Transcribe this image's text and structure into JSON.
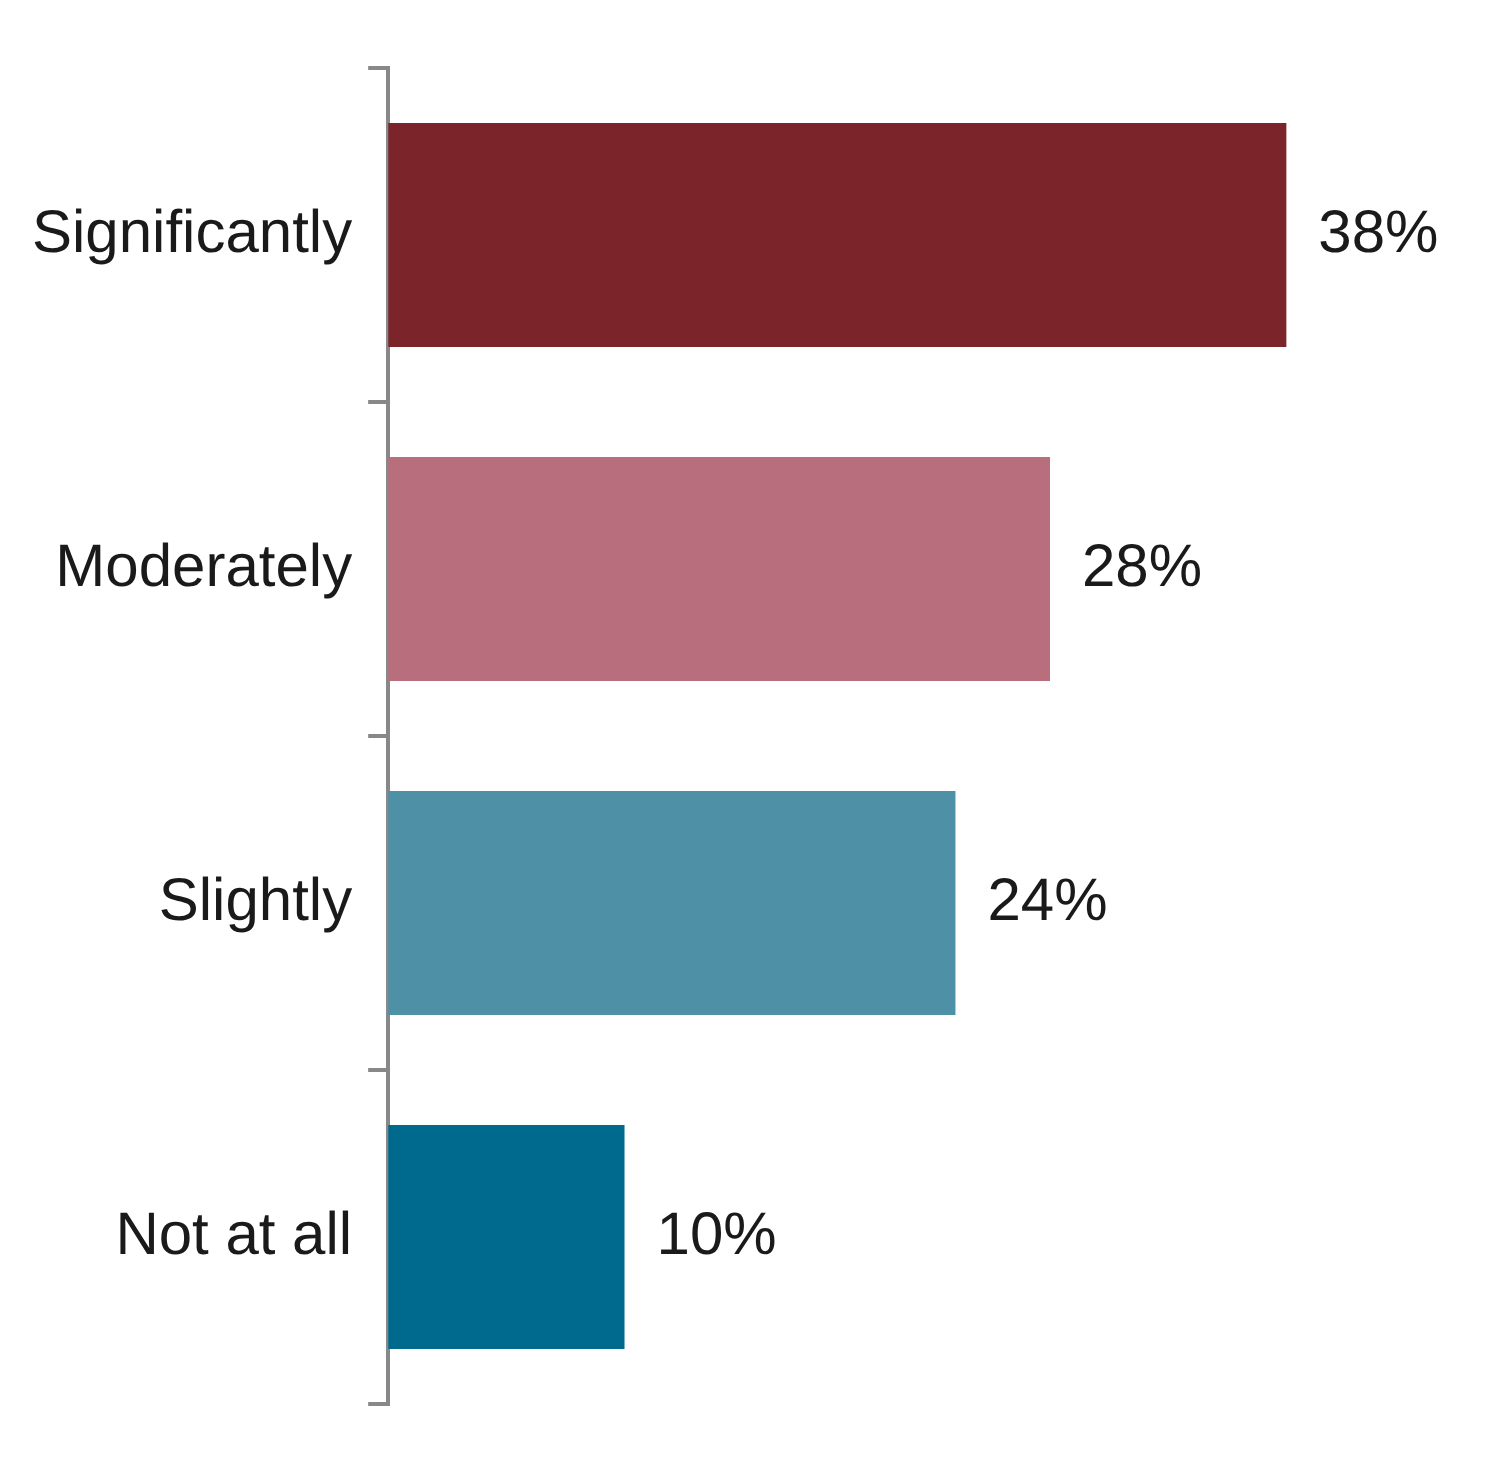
{
  "chart_data": {
    "type": "bar",
    "orientation": "horizontal",
    "categories": [
      "Significantly",
      "Moderately",
      "Slightly",
      "Not at all"
    ],
    "values": [
      38,
      28,
      24,
      10
    ],
    "colors": [
      "#7b252a",
      "#b86e7d",
      "#4e90a6",
      "#006a8e"
    ],
    "value_labels": [
      "38%",
      "28%",
      "24%",
      "10%"
    ],
    "legend": false
  }
}
